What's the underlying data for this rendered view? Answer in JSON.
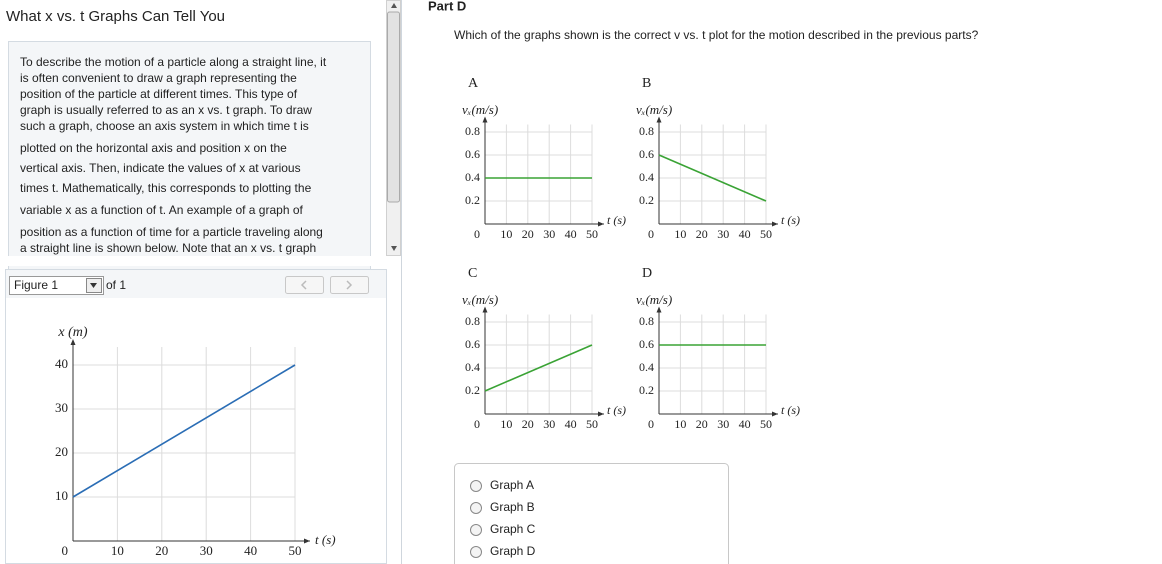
{
  "left_panel": {
    "title": "What x vs. t Graphs Can Tell You",
    "paragraph": [
      "To describe the motion of a particle along a straight line, it",
      "is often convenient to draw a graph representing the",
      "position of the particle at different times. This type of",
      "graph is usually referred to as an x vs. t graph. To draw",
      "such a graph, choose an axis system in which time t is",
      "plotted on the horizontal axis and position x on the",
      "vertical axis. Then, indicate the values of x at various",
      "times t. Mathematically, this corresponds to plotting the",
      "variable x as a function of t. An example of a graph of",
      "position as a function of time for a particle traveling along",
      "a straight line is shown below. Note that an x vs. t graph"
    ],
    "figure_select": "Figure 1",
    "figure_count": "of 1"
  },
  "part": {
    "title": "Part D",
    "question": "Which of the graphs shown is the correct v vs. t plot for the motion described in the previous parts?",
    "options": [
      "Graph A",
      "Graph B",
      "Graph C",
      "Graph D"
    ]
  },
  "chart_data": [
    {
      "type": "line",
      "y_label": "x (m)",
      "x_label": "t (s)",
      "x": [
        0,
        50
      ],
      "series": [
        {
          "color": "#2a6db5",
          "values": [
            10,
            40
          ]
        }
      ],
      "xlim": [
        0,
        50
      ],
      "ylim": [
        0,
        45
      ],
      "xticks": [
        0,
        10,
        20,
        30,
        40,
        50
      ],
      "yticks": [
        10,
        20,
        30,
        40
      ],
      "grid": true
    },
    {
      "type": "line",
      "title": "A",
      "y_label": "vₓ(m/s)",
      "x_label": "t (s)",
      "x": [
        0,
        50
      ],
      "series": [
        {
          "color": "#3aa335",
          "values": [
            0.4,
            0.4
          ]
        }
      ],
      "xlim": [
        0,
        50
      ],
      "ylim": [
        0,
        0.9
      ],
      "xticks": [
        0,
        10,
        20,
        30,
        40,
        50
      ],
      "yticks": [
        0.2,
        0.4,
        0.6,
        0.8
      ],
      "grid": true
    },
    {
      "type": "line",
      "title": "B",
      "y_label": "vₓ(m/s)",
      "x_label": "t (s)",
      "x": [
        0,
        50
      ],
      "series": [
        {
          "color": "#3aa335",
          "values": [
            0.6,
            0.2
          ]
        }
      ],
      "xlim": [
        0,
        50
      ],
      "ylim": [
        0,
        0.9
      ],
      "xticks": [
        0,
        10,
        20,
        30,
        40,
        50
      ],
      "yticks": [
        0.2,
        0.4,
        0.6,
        0.8
      ],
      "grid": true
    },
    {
      "type": "line",
      "title": "C",
      "y_label": "vₓ(m/s)",
      "x_label": "t (s)",
      "x": [
        0,
        50
      ],
      "series": [
        {
          "color": "#3aa335",
          "values": [
            0.2,
            0.6
          ]
        }
      ],
      "xlim": [
        0,
        50
      ],
      "ylim": [
        0,
        0.9
      ],
      "xticks": [
        0,
        10,
        20,
        30,
        40,
        50
      ],
      "yticks": [
        0.2,
        0.4,
        0.6,
        0.8
      ],
      "grid": true
    },
    {
      "type": "line",
      "title": "D",
      "y_label": "vₓ(m/s)",
      "x_label": "t (s)",
      "x": [
        0,
        50
      ],
      "series": [
        {
          "color": "#3aa335",
          "values": [
            0.6,
            0.6
          ]
        }
      ],
      "xlim": [
        0,
        50
      ],
      "ylim": [
        0,
        0.9
      ],
      "xticks": [
        0,
        10,
        20,
        30,
        40,
        50
      ],
      "yticks": [
        0.2,
        0.4,
        0.6,
        0.8
      ],
      "grid": true
    }
  ]
}
